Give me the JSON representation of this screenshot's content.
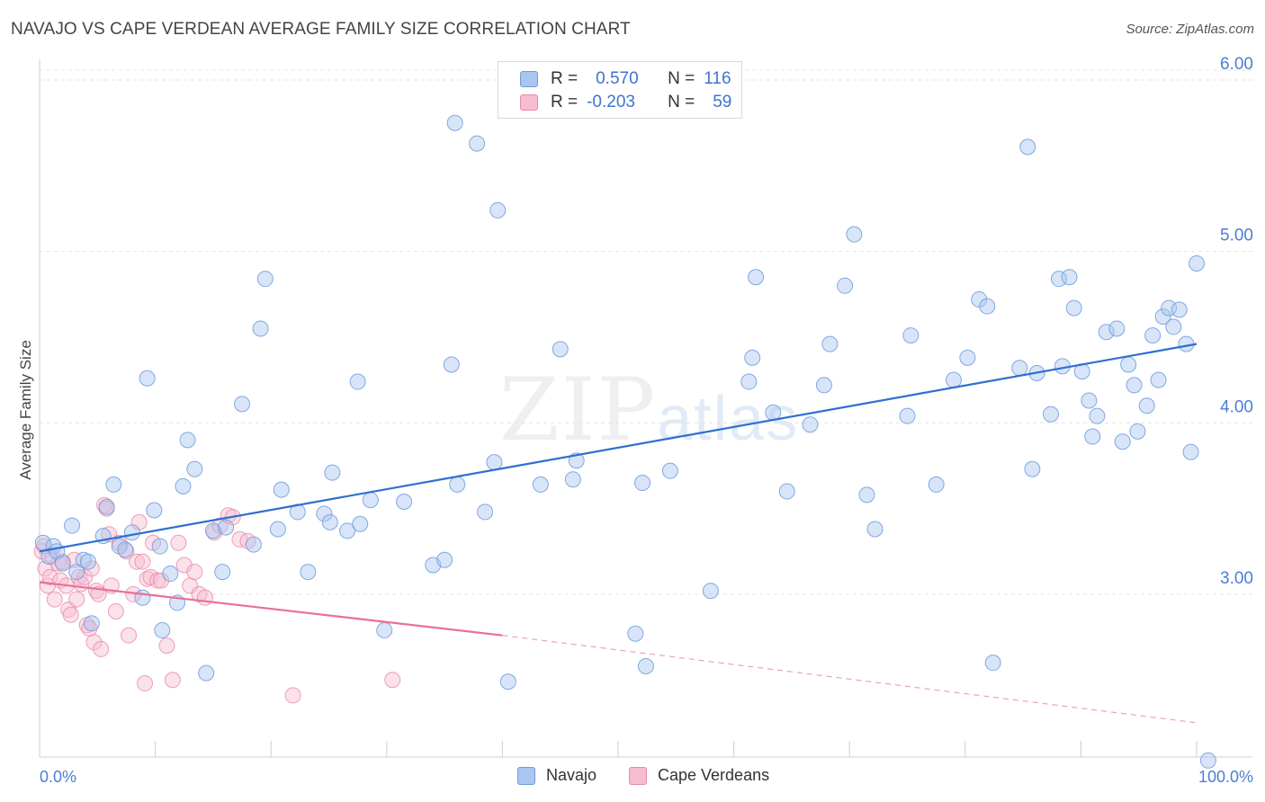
{
  "header": {
    "title": "NAVAJO VS CAPE VERDEAN AVERAGE FAMILY SIZE CORRELATION CHART",
    "source": "Source: ZipAtlas.com"
  },
  "watermark": {
    "zip": "ZIP",
    "atlas": "atlas"
  },
  "legend": {
    "rows": [
      {
        "r_label": "R =",
        "r_value": "0.570",
        "n_label": "N =",
        "n_value": "116",
        "color": "#a9c6f0",
        "border": "#6f9bdc"
      },
      {
        "r_label": "R =",
        "r_value": "-0.203",
        "n_label": "N =",
        "n_value": "59",
        "color": "#f6bcd0",
        "border": "#e88aa8"
      }
    ]
  },
  "bottom_legend": {
    "navajo": "Navajo",
    "cape": "Cape Verdeans"
  },
  "chart_data": {
    "type": "scatter",
    "title": "NAVAJO VS CAPE VERDEAN AVERAGE FAMILY SIZE CORRELATION CHART",
    "xlabel": "",
    "ylabel": "Average Family Size",
    "xlim": [
      0,
      100
    ],
    "ylim": [
      2.05,
      6.1
    ],
    "x_tick_labels": [
      "0.0%",
      "100.0%"
    ],
    "y_ticks": [
      3.0,
      4.0,
      5.0,
      6.0
    ],
    "y_tick_labels": [
      "3.00",
      "4.00",
      "5.00",
      "6.00"
    ],
    "grid": true,
    "colors": {
      "navajo": "#6f9bdc",
      "navajo_fill": "#a9c6f0",
      "cape": "#e88aa8",
      "cape_fill": "#f6bcd0",
      "navajo_line": "#2f6fd0",
      "cape_line": "#e8709a"
    },
    "series": [
      {
        "name": "Navajo",
        "trend": {
          "x0": 0,
          "y0": 3.25,
          "x1": 100,
          "y1": 4.46
        },
        "points": [
          [
            0.3,
            3.3
          ],
          [
            0.8,
            3.22
          ],
          [
            1.2,
            3.28
          ],
          [
            1.5,
            3.25
          ],
          [
            2.0,
            3.18
          ],
          [
            2.8,
            3.4
          ],
          [
            3.2,
            3.13
          ],
          [
            3.8,
            3.2
          ],
          [
            4.2,
            3.19
          ],
          [
            4.5,
            2.83
          ],
          [
            5.5,
            3.34
          ],
          [
            5.8,
            3.51
          ],
          [
            6.4,
            3.64
          ],
          [
            6.9,
            3.28
          ],
          [
            7.4,
            3.26
          ],
          [
            8.0,
            3.36
          ],
          [
            8.9,
            2.98
          ],
          [
            9.3,
            4.26
          ],
          [
            9.9,
            3.49
          ],
          [
            10.4,
            3.28
          ],
          [
            10.6,
            2.79
          ],
          [
            11.3,
            3.12
          ],
          [
            11.9,
            2.95
          ],
          [
            12.4,
            3.63
          ],
          [
            12.8,
            3.9
          ],
          [
            13.4,
            3.73
          ],
          [
            14.4,
            2.54
          ],
          [
            15.0,
            3.37
          ],
          [
            15.8,
            3.13
          ],
          [
            16.1,
            3.39
          ],
          [
            17.5,
            4.11
          ],
          [
            18.5,
            3.29
          ],
          [
            19.1,
            4.55
          ],
          [
            19.5,
            4.84
          ],
          [
            20.6,
            3.38
          ],
          [
            20.9,
            3.61
          ],
          [
            22.3,
            3.48
          ],
          [
            23.2,
            3.13
          ],
          [
            24.6,
            3.47
          ],
          [
            25.1,
            3.42
          ],
          [
            25.3,
            3.71
          ],
          [
            26.6,
            3.37
          ],
          [
            27.5,
            4.24
          ],
          [
            27.7,
            3.41
          ],
          [
            28.6,
            3.55
          ],
          [
            29.8,
            2.79
          ],
          [
            31.5,
            3.54
          ],
          [
            34.0,
            3.17
          ],
          [
            35.0,
            3.2
          ],
          [
            35.6,
            4.34
          ],
          [
            35.9,
            5.75
          ],
          [
            36.1,
            3.64
          ],
          [
            37.8,
            5.63
          ],
          [
            38.5,
            3.48
          ],
          [
            39.3,
            3.77
          ],
          [
            39.6,
            5.24
          ],
          [
            40.5,
            2.49
          ],
          [
            43.3,
            3.64
          ],
          [
            45.0,
            4.43
          ],
          [
            46.1,
            3.67
          ],
          [
            46.4,
            3.78
          ],
          [
            51.5,
            2.77
          ],
          [
            52.1,
            3.65
          ],
          [
            52.4,
            2.58
          ],
          [
            54.5,
            3.72
          ],
          [
            58.0,
            3.02
          ],
          [
            61.3,
            4.24
          ],
          [
            61.6,
            4.38
          ],
          [
            61.9,
            4.85
          ],
          [
            63.4,
            4.06
          ],
          [
            64.6,
            3.6
          ],
          [
            66.6,
            3.99
          ],
          [
            67.8,
            4.22
          ],
          [
            68.3,
            4.46
          ],
          [
            69.6,
            4.8
          ],
          [
            70.4,
            5.1
          ],
          [
            71.5,
            3.58
          ],
          [
            72.2,
            3.38
          ],
          [
            75.0,
            4.04
          ],
          [
            75.3,
            4.51
          ],
          [
            77.5,
            3.64
          ],
          [
            79.0,
            4.25
          ],
          [
            80.2,
            4.38
          ],
          [
            81.2,
            4.72
          ],
          [
            81.9,
            4.68
          ],
          [
            82.4,
            2.6
          ],
          [
            84.7,
            4.32
          ],
          [
            85.4,
            5.61
          ],
          [
            85.8,
            3.73
          ],
          [
            86.2,
            4.29
          ],
          [
            87.4,
            4.05
          ],
          [
            88.1,
            4.84
          ],
          [
            88.4,
            4.33
          ],
          [
            89.0,
            4.85
          ],
          [
            89.4,
            4.67
          ],
          [
            90.1,
            4.3
          ],
          [
            90.7,
            4.13
          ],
          [
            91.0,
            3.92
          ],
          [
            91.4,
            4.04
          ],
          [
            92.2,
            4.53
          ],
          [
            93.1,
            4.55
          ],
          [
            93.6,
            3.89
          ],
          [
            94.1,
            4.34
          ],
          [
            94.6,
            4.22
          ],
          [
            94.9,
            3.95
          ],
          [
            95.7,
            4.1
          ],
          [
            96.2,
            4.51
          ],
          [
            96.7,
            4.25
          ],
          [
            97.1,
            4.62
          ],
          [
            97.6,
            4.67
          ],
          [
            98.0,
            4.56
          ],
          [
            98.5,
            4.66
          ],
          [
            99.1,
            4.46
          ],
          [
            99.5,
            3.83
          ],
          [
            100.0,
            4.93
          ],
          [
            101.0,
            2.03
          ]
        ]
      },
      {
        "name": "Cape Verdeans",
        "trend": {
          "x0": 0,
          "y0": 3.07,
          "x1": 40,
          "y1": 2.76,
          "dash_x1": 100,
          "dash_y1": 2.25
        },
        "points": [
          [
            0.2,
            3.25
          ],
          [
            0.5,
            3.15
          ],
          [
            0.7,
            3.05
          ],
          [
            0.9,
            3.1
          ],
          [
            1.1,
            3.22
          ],
          [
            1.3,
            2.97
          ],
          [
            1.6,
            3.18
          ],
          [
            1.8,
            3.08
          ],
          [
            2.0,
            3.19
          ],
          [
            2.3,
            3.05
          ],
          [
            2.5,
            2.91
          ],
          [
            2.7,
            2.88
          ],
          [
            3.0,
            3.2
          ],
          [
            3.2,
            2.97
          ],
          [
            3.4,
            3.1
          ],
          [
            3.6,
            3.06
          ],
          [
            3.9,
            3.1
          ],
          [
            4.1,
            2.82
          ],
          [
            4.3,
            2.8
          ],
          [
            4.5,
            3.15
          ],
          [
            4.7,
            2.72
          ],
          [
            4.9,
            3.02
          ],
          [
            5.1,
            3.0
          ],
          [
            5.3,
            2.68
          ],
          [
            5.6,
            3.52
          ],
          [
            5.8,
            3.5
          ],
          [
            6.0,
            3.35
          ],
          [
            6.2,
            3.05
          ],
          [
            6.6,
            2.9
          ],
          [
            6.9,
            3.3
          ],
          [
            7.5,
            3.25
          ],
          [
            7.7,
            2.76
          ],
          [
            8.1,
            3.0
          ],
          [
            8.4,
            3.19
          ],
          [
            8.6,
            3.42
          ],
          [
            8.9,
            3.19
          ],
          [
            9.1,
            2.48
          ],
          [
            9.3,
            3.09
          ],
          [
            9.6,
            3.1
          ],
          [
            9.8,
            3.3
          ],
          [
            10.2,
            3.08
          ],
          [
            10.5,
            3.08
          ],
          [
            11.0,
            2.7
          ],
          [
            11.5,
            2.5
          ],
          [
            12.0,
            3.3
          ],
          [
            12.5,
            3.17
          ],
          [
            13.0,
            3.05
          ],
          [
            13.4,
            3.13
          ],
          [
            13.8,
            3.0
          ],
          [
            14.3,
            2.98
          ],
          [
            15.1,
            3.36
          ],
          [
            15.6,
            3.4
          ],
          [
            16.3,
            3.46
          ],
          [
            16.7,
            3.45
          ],
          [
            17.3,
            3.32
          ],
          [
            18.0,
            3.31
          ],
          [
            21.9,
            2.41
          ],
          [
            30.5,
            2.5
          ],
          [
            0.4,
            3.28
          ]
        ]
      }
    ]
  }
}
